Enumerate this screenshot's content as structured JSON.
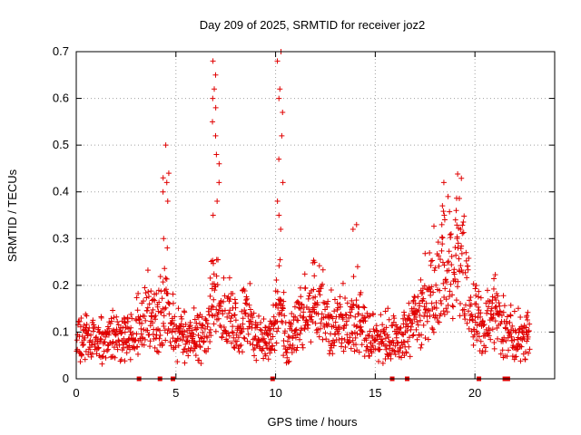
{
  "chart_data": {
    "type": "scatter",
    "title": "Day 209 of 2025, SRMTID for receiver joz2",
    "xlabel": "GPS time / hours",
    "ylabel": "SRMTID / TECUs",
    "xlim": [
      0,
      24
    ],
    "ylim": [
      0,
      0.7
    ],
    "xticks": [
      0,
      5,
      10,
      15,
      20
    ],
    "yticks": [
      0,
      0.1,
      0.2,
      0.3,
      0.4,
      0.5,
      0.6,
      0.7
    ],
    "grid": true,
    "marker": "plus",
    "color": "#e00000",
    "points_note": "dense scatter of ~1500 points; background level 0.05-0.20 TECU, larger bursts near 4.5, 7, 10, 14, 18.5 and 19 h",
    "bursts": [
      {
        "x": 4.5,
        "y": [
          0.5,
          0.44,
          0.43,
          0.42,
          0.4,
          0.38,
          0.3,
          0.28
        ]
      },
      {
        "x": 7.0,
        "y": [
          0.68,
          0.65,
          0.62,
          0.6,
          0.58,
          0.55,
          0.52,
          0.48,
          0.46,
          0.42,
          0.38,
          0.35
        ]
      },
      {
        "x": 10.2,
        "y": [
          0.7,
          0.68,
          0.62,
          0.6,
          0.57,
          0.52,
          0.47,
          0.42,
          0.38,
          0.35,
          0.32
        ]
      },
      {
        "x": 14.0,
        "y": [
          0.33,
          0.32,
          0.24
        ]
      },
      {
        "x": 18.5,
        "y": [
          0.42,
          0.39,
          0.37,
          0.35,
          0.33
        ]
      },
      {
        "x": 19.2,
        "y": [
          0.34,
          0.32,
          0.3,
          0.28
        ]
      }
    ],
    "zero_markers_x": [
      3.15,
      4.2,
      4.85,
      9.85,
      15.85,
      16.6,
      20.2,
      21.5,
      21.65
    ],
    "seed": 209
  }
}
